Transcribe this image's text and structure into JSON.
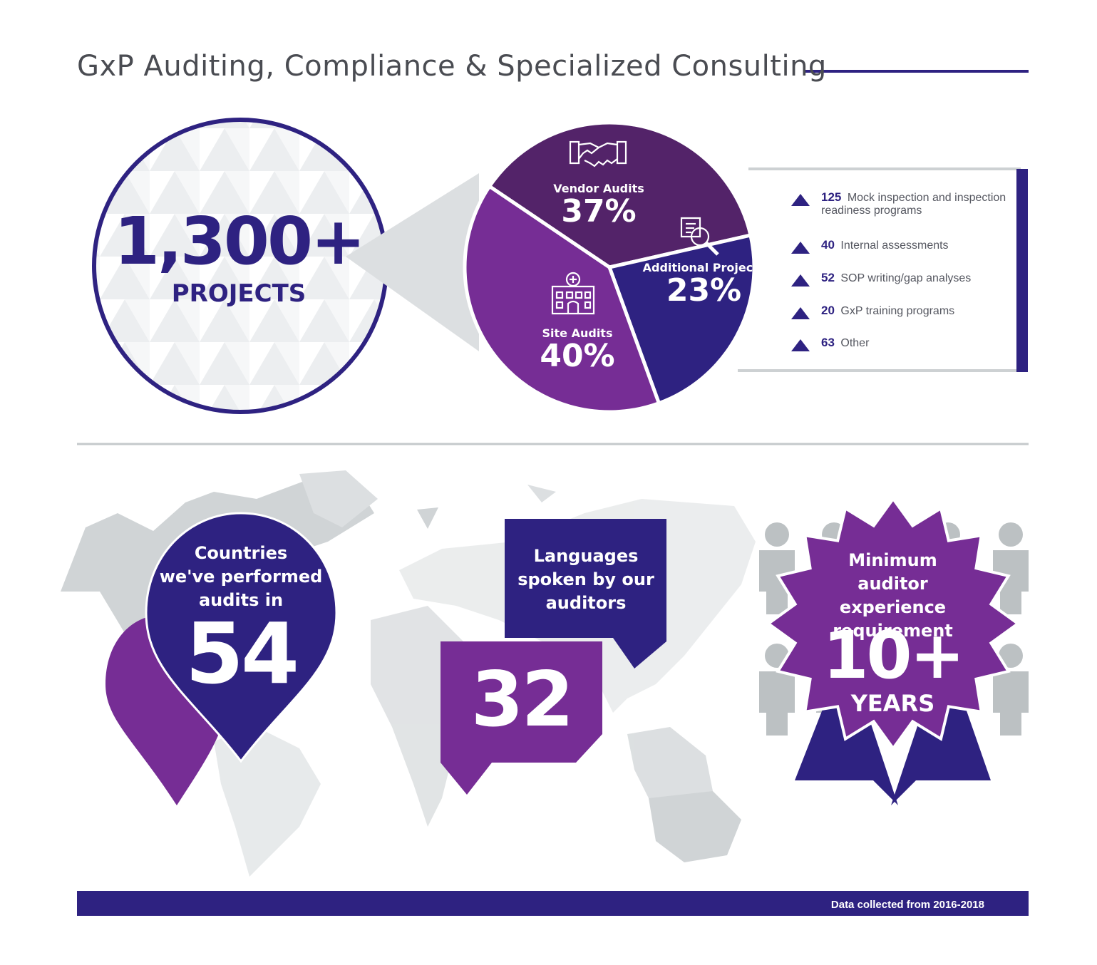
{
  "title": "GxP Auditing, Compliance & Specialized Consulting",
  "projects": {
    "total": "1,300+",
    "label": "PROJECTS"
  },
  "icons": [
    "handshake-icon",
    "document-search-icon",
    "hospital-icon",
    "person-icon"
  ],
  "colors": {
    "navy": "#2e2281",
    "vendor": "#532369",
    "site": "#762d95",
    "additional": "#2e2281",
    "gray": "#c8cdcf"
  },
  "chart_data": {
    "type": "pie",
    "title": "",
    "slices": [
      {
        "label": "Vendor Audits",
        "value": 37,
        "value_label": "37%",
        "color": "#532369"
      },
      {
        "label": "Additional Projects",
        "value": 23,
        "value_label": "23%",
        "color": "#2e2281"
      },
      {
        "label": "Site Audits",
        "value": 40,
        "value_label": "40%",
        "color": "#762d95"
      }
    ]
  },
  "additional_breakdown": [
    {
      "count": "125",
      "text": "Mock inspection and inspection readiness programs"
    },
    {
      "count": "40",
      "text": "Internal assessments"
    },
    {
      "count": "52",
      "text": "SOP writing/gap analyses"
    },
    {
      "count": "20",
      "text": "GxP training programs"
    },
    {
      "count": "63",
      "text": "Other"
    }
  ],
  "stats": {
    "countries": {
      "label_lines": [
        "Countries",
        "we've performed",
        "audits in"
      ],
      "value": "54"
    },
    "languages": {
      "label_lines": [
        "Languages",
        "spoken by our",
        "auditors"
      ],
      "value": "32"
    },
    "experience": {
      "label_lines": [
        "Minimum",
        "auditor experience",
        "requirement"
      ],
      "value": "10+",
      "unit": "YEARS"
    }
  },
  "footer": "Data collected from 2016-2018"
}
